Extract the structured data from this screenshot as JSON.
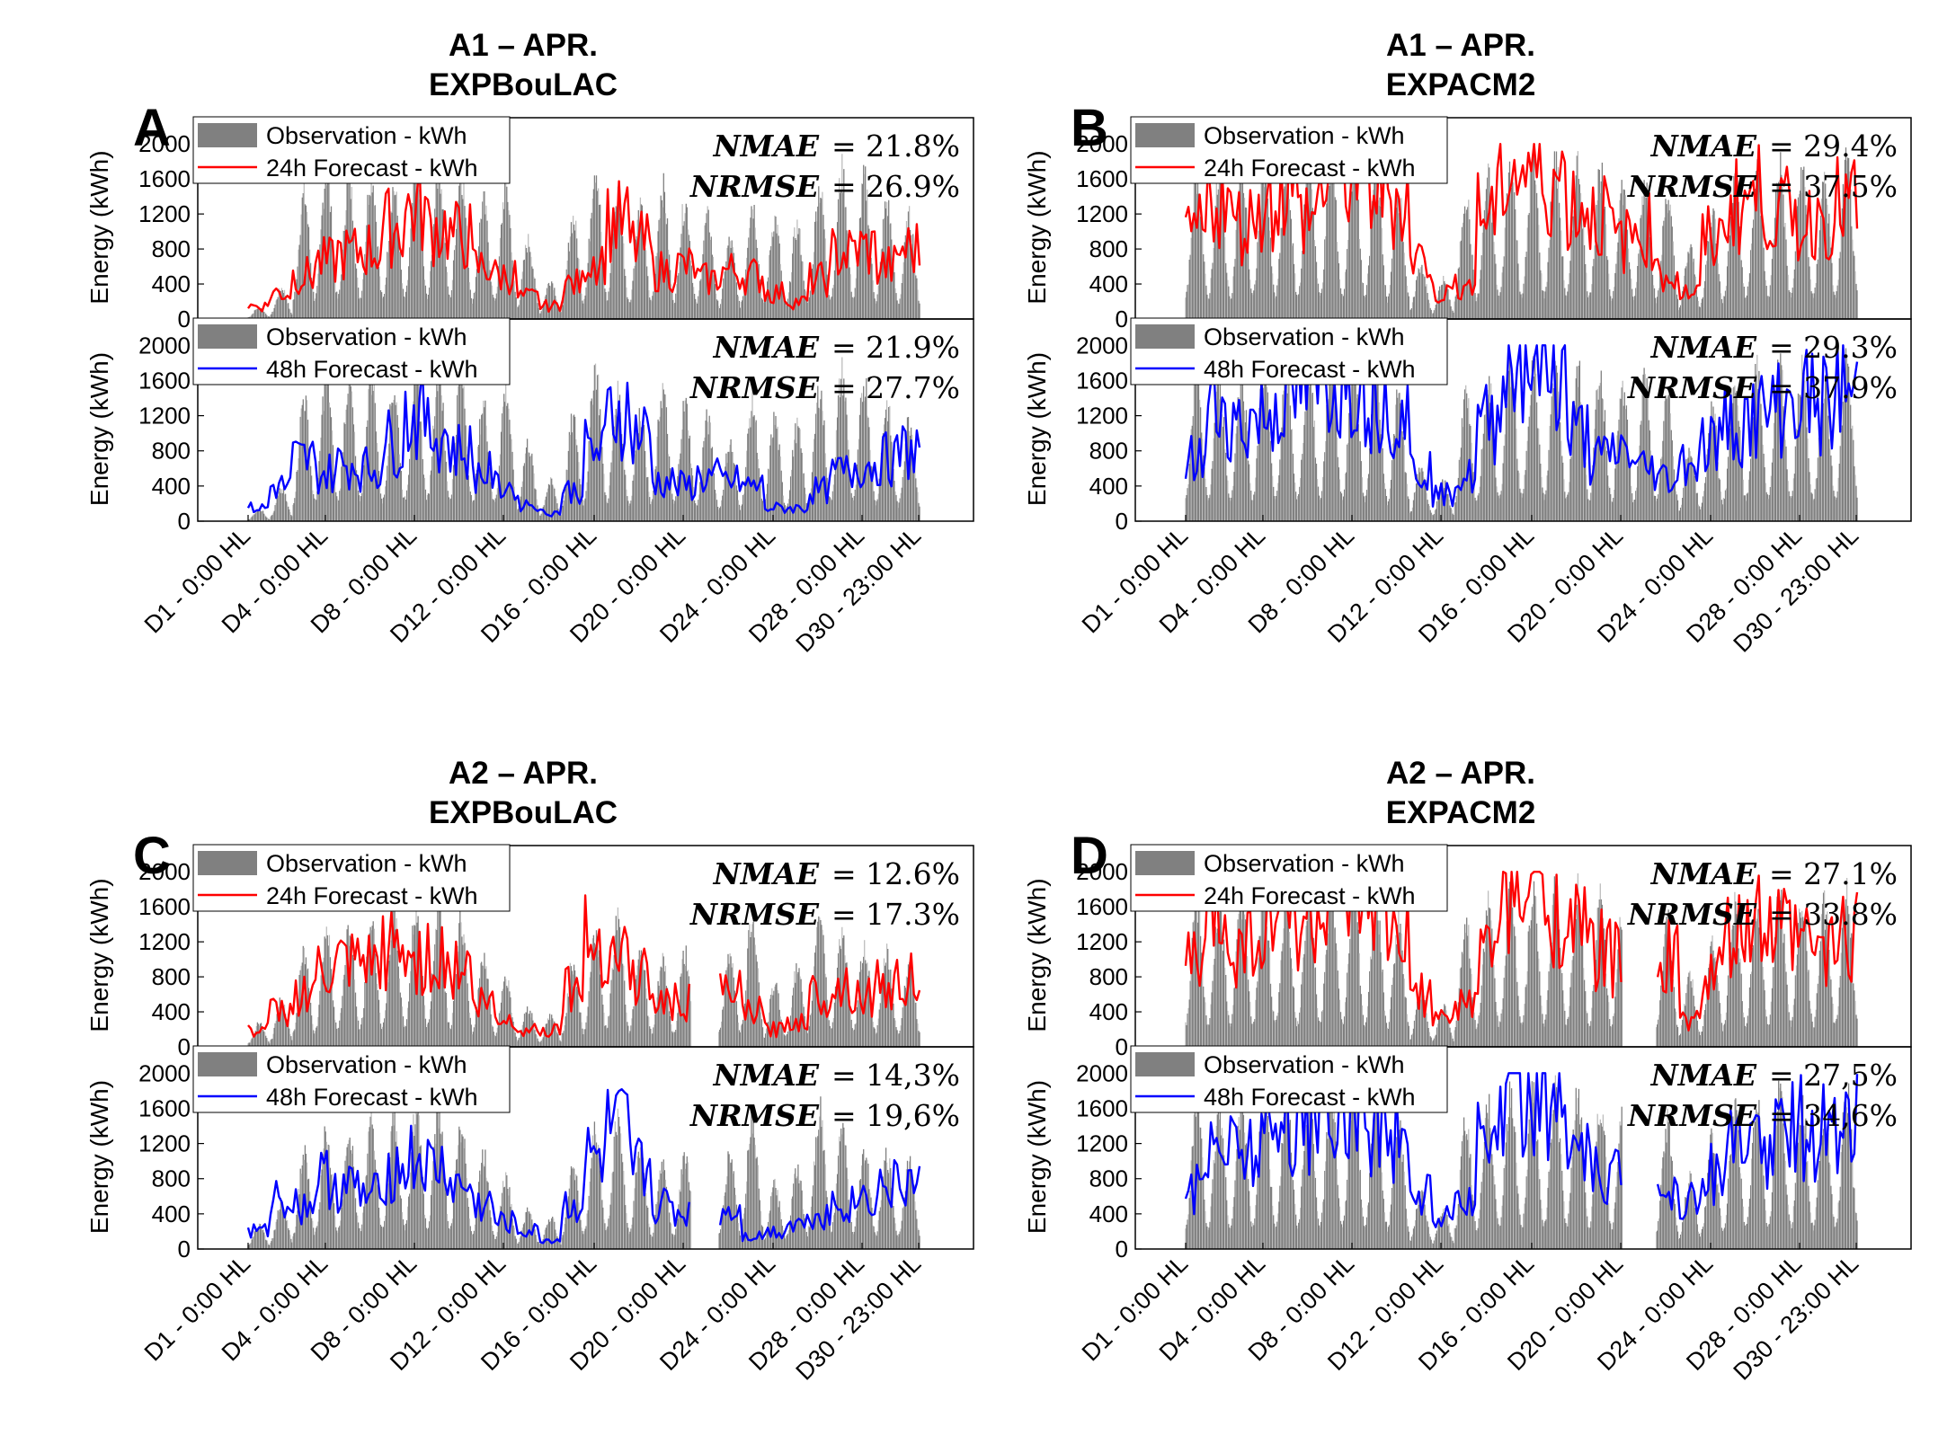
{
  "chart_data": [
    {
      "id": "A",
      "panel_letter": "A",
      "title_line1": "A1 – APR.",
      "title_line2": "EXPBouLAC",
      "gap": null,
      "ylabel": "Energy (kWh)",
      "yticks": [
        "0",
        "400",
        "800",
        "1200",
        "1600",
        "2000"
      ],
      "ylim": [
        0,
        2300
      ],
      "x_ticks": [
        "D1 - 0:00 HL",
        "D4 - 0:00 HL",
        "D8 - 0:00 HL",
        "D12 - 0:00 HL",
        "D16 - 0:00 HL",
        "D20 - 0:00 HL",
        "D24 - 0:00 HL",
        "D28 - 0:00 HL",
        "D30 - 23:00 HL"
      ],
      "subplots": [
        {
          "legend": [
            "Observation - kWh",
            "24h Forecast - kWh"
          ],
          "forecast_color": "#ff0000",
          "metric1_name": "NMAE",
          "metric1_value": "= 21.8%",
          "metric2_name": "NRMSE",
          "metric2_value": "= 26.9%",
          "observation_daily_peak": [
            150,
            400,
            1600,
            1900,
            1800,
            1900,
            1700,
            1900,
            2000,
            1900,
            1500,
            1700,
            1000,
            500,
            1300,
            2000,
            1600,
            1400,
            1700,
            1500,
            1300,
            1000,
            1500,
            1300,
            1200,
            1700,
            1900,
            1800,
            1500,
            1300
          ],
          "forecast_daily_mean": [
            150,
            300,
            500,
            650,
            750,
            800,
            1050,
            1250,
            1050,
            950,
            600,
            500,
            250,
            150,
            400,
            700,
            1100,
            850,
            550,
            600,
            450,
            550,
            500,
            300,
            200,
            450,
            750,
            800,
            600,
            800
          ]
        },
        {
          "legend": [
            "Observation - kWh",
            "48h Forecast - kWh"
          ],
          "forecast_color": "#0000ff",
          "metric1_name": "NMAE",
          "metric1_value": "= 21.9%",
          "metric2_name": "NRMSE",
          "metric2_value": "= 27.7%",
          "observation_daily_peak": [
            150,
            400,
            1600,
            1900,
            1800,
            1900,
            1700,
            1900,
            2000,
            1900,
            1500,
            1700,
            1000,
            500,
            1300,
            2000,
            1600,
            1400,
            1700,
            1500,
            1300,
            1000,
            1500,
            1300,
            1200,
            1700,
            1900,
            1800,
            1500,
            1300
          ],
          "forecast_daily_mean": [
            150,
            400,
            700,
            550,
            650,
            600,
            900,
            1200,
            1000,
            800,
            550,
            400,
            200,
            100,
            350,
            800,
            1250,
            1000,
            450,
            400,
            500,
            450,
            400,
            150,
            150,
            350,
            550,
            650,
            700,
            800
          ]
        }
      ]
    },
    {
      "id": "B",
      "panel_letter": "B",
      "title_line1": "A1 – APR.",
      "title_line2": "EXPACM2",
      "gap": null,
      "ylabel": "Energy (kWh)",
      "yticks": [
        "0",
        "400",
        "800",
        "1200",
        "1600",
        "2000"
      ],
      "ylim": [
        0,
        2300
      ],
      "x_ticks": [
        "D1 - 0:00 HL",
        "D4 - 0:00 HL",
        "D8 - 0:00 HL",
        "D12 - 0:00 HL",
        "D16 - 0:00 HL",
        "D20 - 0:00 HL",
        "D24 - 0:00 HL",
        "D28 - 0:00 HL",
        "D30 - 23:00 HL"
      ],
      "subplots": [
        {
          "legend": [
            "Observation - kWh",
            "24h Forecast - kWh"
          ],
          "forecast_color": "#ff0000",
          "metric1_name": "NMAE",
          "metric1_value": "= 29.4%",
          "metric2_name": "NRMSE",
          "metric2_value": "= 37.5%",
          "observation_daily_peak": [
            1900,
            1800,
            1900,
            2000,
            1900,
            2000,
            2000,
            2000,
            1900,
            1600,
            700,
            500,
            1600,
            1800,
            2000,
            2000,
            2000,
            2000,
            1900,
            1700,
            1800,
            1600,
            900,
            1400,
            1800,
            1900,
            2000,
            1900,
            1800,
            2000
          ],
          "forecast_daily_mean": [
            1000,
            1400,
            1100,
            1300,
            1500,
            1200,
            1600,
            1700,
            1500,
            1400,
            700,
            300,
            400,
            1200,
            1700,
            1700,
            1600,
            1300,
            1200,
            900,
            1000,
            500,
            300,
            900,
            1300,
            1400,
            1200,
            1100,
            1200,
            1300
          ]
        },
        {
          "legend": [
            "Observation - kWh",
            "48h Forecast - kWh"
          ],
          "forecast_color": "#0000ff",
          "metric1_name": "NMAE",
          "metric1_value": "= 29.3%",
          "metric2_name": "NRMSE",
          "metric2_value": "= 37.9%",
          "observation_daily_peak": [
            1900,
            1800,
            1900,
            2000,
            1900,
            2000,
            2000,
            2000,
            1900,
            1600,
            700,
            500,
            1600,
            1800,
            2000,
            2000,
            2000,
            2000,
            1900,
            1700,
            1800,
            1600,
            900,
            1400,
            1800,
            1900,
            2000,
            1900,
            1800,
            2000
          ],
          "forecast_daily_mean": [
            700,
            1300,
            1100,
            1200,
            1400,
            1500,
            1600,
            1700,
            1400,
            1300,
            600,
            300,
            500,
            1100,
            1800,
            1900,
            1700,
            1000,
            700,
            800,
            600,
            500,
            700,
            900,
            1100,
            1200,
            1300,
            1400,
            1300,
            1500
          ]
        }
      ]
    },
    {
      "id": "C",
      "panel_letter": "C",
      "title_line1": "A2 – APR.",
      "title_line2": "EXPBouLAC",
      "gap": [
        0.66,
        0.7
      ],
      "ylabel": "Energy (kWh)",
      "yticks": [
        "0",
        "400",
        "800",
        "1200",
        "1600",
        "2000"
      ],
      "ylim": [
        0,
        2300
      ],
      "x_ticks": [
        "D1 - 0:00 HL",
        "D4 - 0:00 HL",
        "D8 - 0:00 HL",
        "D12 - 0:00 HL",
        "D16 - 0:00 HL",
        "D20 - 0:00 HL",
        "D24 - 0:00 HL",
        "D28 - 0:00 HL",
        "D30 - 23:00 HL"
      ],
      "subplots": [
        {
          "legend": [
            "Observation - kWh",
            "24h Forecast - kWh"
          ],
          "forecast_color": "#ff0000",
          "metric1_name": "NMAE",
          "metric1_value": "= 12.6%",
          "metric2_name": "NRMSE",
          "metric2_value": "= 17.3%",
          "observation_daily_peak": [
            300,
            600,
            1200,
            1500,
            1500,
            1600,
            1700,
            1800,
            1800,
            1600,
            1200,
            900,
            500,
            400,
            1100,
            1500,
            1700,
            1300,
            1100,
            1200,
            1500,
            1200,
            1700,
            800,
            1000,
            1800,
            1500,
            1300,
            1200,
            1100
          ],
          "forecast_daily_mean": [
            200,
            400,
            600,
            800,
            900,
            900,
            1100,
            1000,
            1000,
            900,
            500,
            300,
            200,
            200,
            700,
            1200,
            1100,
            800,
            500,
            500,
            600,
            600,
            400,
            200,
            300,
            600,
            700,
            600,
            700,
            800
          ]
        },
        {
          "legend": [
            "Observation - kWh",
            "48h Forecast - kWh"
          ],
          "forecast_color": "#0000ff",
          "metric1_name": "NMAE",
          "metric1_value": "= 14,3%",
          "metric2_name": "NRMSE",
          "metric2_value": "= 19,6%",
          "observation_daily_peak": [
            300,
            600,
            1200,
            1500,
            1500,
            1600,
            1700,
            1800,
            1800,
            1600,
            1200,
            900,
            500,
            400,
            1100,
            1500,
            1700,
            1300,
            1100,
            1200,
            1500,
            1200,
            1700,
            800,
            1000,
            1800,
            1500,
            1300,
            1200,
            1100
          ],
          "forecast_daily_mean": [
            200,
            600,
            500,
            800,
            700,
            600,
            900,
            1000,
            900,
            700,
            500,
            300,
            200,
            100,
            500,
            1000,
            1300,
            900,
            500,
            400,
            450,
            450,
            150,
            200,
            300,
            400,
            500,
            600,
            700,
            750
          ]
        }
      ]
    },
    {
      "id": "D",
      "panel_letter": "D",
      "title_line1": "A2 – APR.",
      "title_line2": "EXPACM2",
      "gap": [
        0.65,
        0.7
      ],
      "ylabel": "Energy (kWh)",
      "yticks": [
        "0",
        "400",
        "800",
        "1200",
        "1600",
        "2000"
      ],
      "ylim": [
        0,
        2300
      ],
      "x_ticks": [
        "D1 - 0:00 HL",
        "D4 - 0:00 HL",
        "D8 - 0:00 HL",
        "D12 - 0:00 HL",
        "D16 - 0:00 HL",
        "D20 - 0:00 HL",
        "D24 - 0:00 HL",
        "D28 - 0:00 HL",
        "D30 - 23:00 HL"
      ],
      "subplots": [
        {
          "legend": [
            "Observation - kWh",
            "24h Forecast - kWh"
          ],
          "forecast_color": "#ff0000",
          "metric1_name": "NMAE",
          "metric1_value": "= 27.1%",
          "metric2_name": "NRMSE",
          "metric2_value": "= 33.8%",
          "observation_daily_peak": [
            1900,
            1800,
            1900,
            2000,
            1900,
            2000,
            2000,
            2000,
            1900,
            1600,
            700,
            500,
            1600,
            1800,
            2000,
            2000,
            2000,
            2000,
            1900,
            1700,
            1800,
            1600,
            900,
            1400,
            1800,
            1900,
            2000,
            1900,
            1800,
            2000
          ],
          "forecast_daily_mean": [
            1000,
            1500,
            1200,
            1300,
            1600,
            1400,
            1700,
            1600,
            1500,
            1200,
            600,
            300,
            500,
            1100,
            1700,
            1800,
            1600,
            1300,
            1100,
            1000,
            1000,
            1000,
            300,
            800,
            1200,
            1400,
            1300,
            1200,
            1100,
            1300
          ]
        },
        {
          "legend": [
            "Observation - kWh",
            "48h Forecast - kWh"
          ],
          "forecast_color": "#0000ff",
          "metric1_name": "NMAE",
          "metric1_value": "= 27,5%",
          "metric2_name": "NRMSE",
          "metric2_value": "= 34,6%",
          "observation_daily_peak": [
            1900,
            1800,
            1900,
            2000,
            1900,
            2000,
            2000,
            2000,
            1900,
            1600,
            700,
            500,
            1600,
            1800,
            2000,
            2000,
            2000,
            2000,
            1900,
            1700,
            1800,
            1600,
            900,
            1400,
            1800,
            1900,
            2000,
            1900,
            1800,
            2000
          ],
          "forecast_daily_mean": [
            700,
            1300,
            1200,
            1300,
            1400,
            1500,
            1700,
            1700,
            1400,
            1300,
            600,
            400,
            600,
            1200,
            1900,
            1900,
            1700,
            1000,
            800,
            800,
            700,
            700,
            600,
            900,
            1100,
            1200,
            1300,
            1400,
            1300,
            1500
          ]
        }
      ]
    }
  ]
}
